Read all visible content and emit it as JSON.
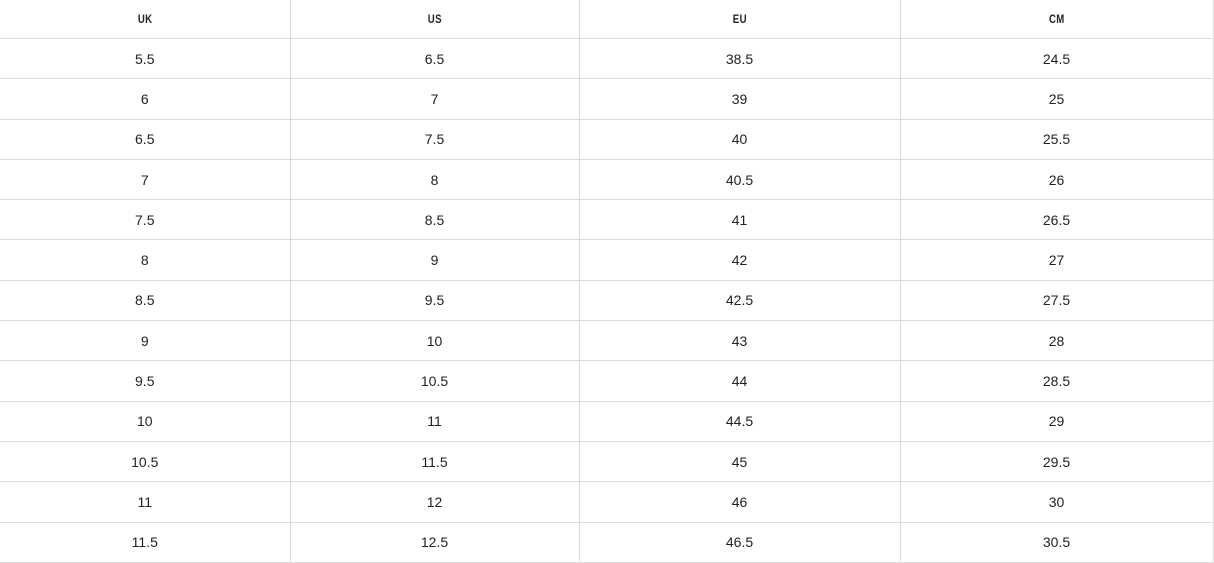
{
  "table": {
    "headers": [
      "UK",
      "US",
      "EU",
      "CM"
    ],
    "rows": [
      [
        "5.5",
        "6.5",
        "38.5",
        "24.5"
      ],
      [
        "6",
        "7",
        "39",
        "25"
      ],
      [
        "6.5",
        "7.5",
        "40",
        "25.5"
      ],
      [
        "7",
        "8",
        "40.5",
        "26"
      ],
      [
        "7.5",
        "8.5",
        "41",
        "26.5"
      ],
      [
        "8",
        "9",
        "42",
        "27"
      ],
      [
        "8.5",
        "9.5",
        "42.5",
        "27.5"
      ],
      [
        "9",
        "10",
        "43",
        "28"
      ],
      [
        "9.5",
        "10.5",
        "44",
        "28.5"
      ],
      [
        "10",
        "11",
        "44.5",
        "29"
      ],
      [
        "10.5",
        "11.5",
        "45",
        "29.5"
      ],
      [
        "11",
        "12",
        "46",
        "30"
      ],
      [
        "11.5",
        "12.5",
        "46.5",
        "30.5"
      ]
    ]
  }
}
